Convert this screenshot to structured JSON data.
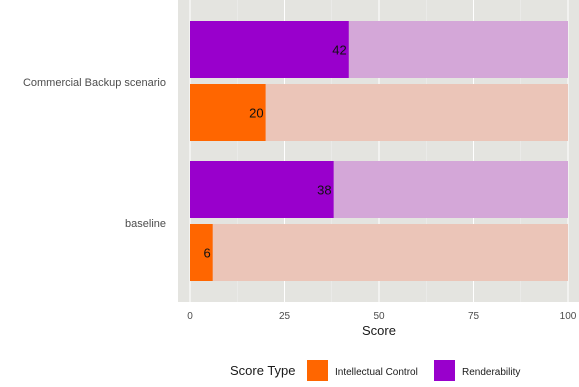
{
  "chart_data": {
    "type": "bar",
    "orientation": "horizontal",
    "stacking": "overlay",
    "categories": [
      "Commercial Backup scenario",
      "baseline"
    ],
    "series": [
      {
        "name": "Renderability",
        "values": [
          42,
          38
        ],
        "color": "#9900CC",
        "track_color": "#D4A7D8"
      },
      {
        "name": "Intellectual Control",
        "values": [
          20,
          6
        ],
        "color": "#FF6600",
        "track_color": "#EBC5B8"
      }
    ],
    "max": 100,
    "xlim": [
      0,
      100
    ],
    "x_ticks": [
      "0",
      "25",
      "50",
      "75",
      "100"
    ],
    "xlabel": "Score",
    "ylabel": "",
    "title": "",
    "legend": {
      "title": "Score Type",
      "position": "bottom"
    },
    "grid": true,
    "panel_background": "#E4E4E0",
    "page_background": "#FFFFFF"
  }
}
